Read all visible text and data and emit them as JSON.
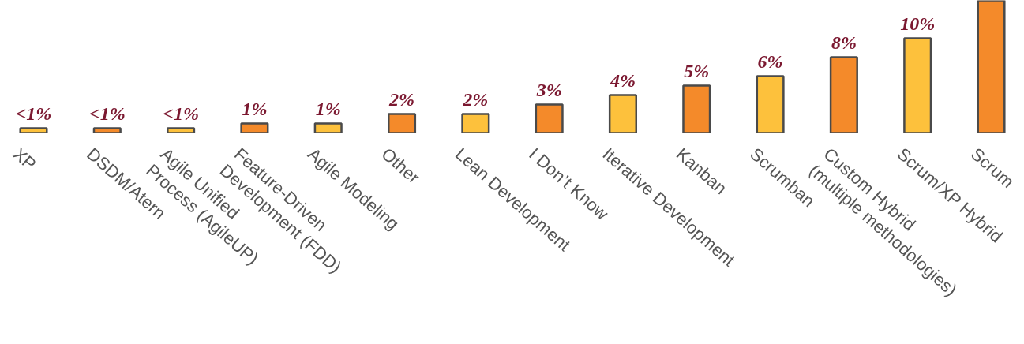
{
  "chart_data": {
    "type": "bar",
    "categories": [
      "XP",
      "DSDM/Atern",
      "Agile Unified\nProcess (AgileUP)",
      "Feature-Driven\nDevelopment (FDD)",
      "Agile Modeling",
      "Other",
      "Lean Development",
      "I Don’t Know",
      "Iterative Development",
      "Kanban",
      "Scrumban",
      "Custom Hybrid\n(multiple methodologies)",
      "Scrum/XP Hybrid",
      "Scrum"
    ],
    "values": [
      0.5,
      0.5,
      0.5,
      1,
      1,
      2,
      2,
      3,
      4,
      5,
      6,
      8,
      10,
      14
    ],
    "colors": [
      "#fdc13c",
      "#f48a2a",
      "#fdc13c",
      "#f48a2a",
      "#fdc13c",
      "#f48a2a",
      "#fdc13c",
      "#f48a2a",
      "#fdc13c",
      "#f48a2a",
      "#fdc13c",
      "#f48a2a",
      "#fdc13c",
      "#f48a2a"
    ],
    "value_labels": [
      "<1%",
      "<1%",
      "<1%",
      "1%",
      "1%",
      "2%",
      "2%",
      "3%",
      "4%",
      "5%",
      "6%",
      "8%",
      "10%",
      null
    ],
    "ylim": [
      0,
      14
    ],
    "grid": false
  }
}
